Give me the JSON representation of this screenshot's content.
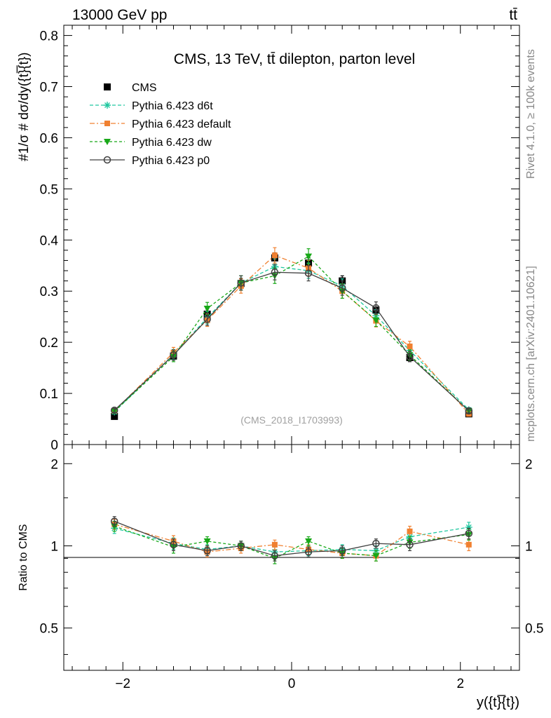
{
  "header": {
    "left": "13000 GeV pp",
    "right": "tt̄"
  },
  "side_labels": {
    "rivet": "Rivet 4.1.0, ≥ 100k events",
    "mcplots": "mcplots.cern.ch [arXiv:2401.10621]"
  },
  "colors": {
    "cms": "#000000",
    "d6t": "#20c8a0",
    "default": "#f08030",
    "dw": "#18a818",
    "p0": "#404040"
  },
  "chart_data": [
    {
      "type": "line",
      "title": "CMS, 13 TeV, tt̄ dilepton, parton level",
      "watermark": "(CMS_2018_I1703993)",
      "ylabel": "#1/σ # dσ/dy({t}̅{t})",
      "ylim": [
        0,
        0.82
      ],
      "xlim": [
        -2.7,
        2.7
      ],
      "yticks": [
        0,
        0.1,
        0.2,
        0.3,
        0.4,
        0.5,
        0.6,
        0.7,
        0.8
      ],
      "ytick_labels": [
        "0",
        "0.1",
        "0.2",
        "0.3",
        "0.4",
        "0.5",
        "0.6",
        "0.7",
        "0.8"
      ],
      "x": [
        -2.1,
        -1.4,
        -1.0,
        -0.6,
        -0.2,
        0.2,
        0.6,
        1.0,
        1.4,
        2.1
      ],
      "series": [
        {
          "name": "CMS",
          "key": "cms",
          "marker": "square",
          "dash": "",
          "connect": false,
          "values": [
            0.055,
            0.173,
            0.255,
            0.315,
            0.365,
            0.355,
            0.32,
            0.263,
            0.17,
            0.06
          ],
          "errors": [
            0.004,
            0.008,
            0.01,
            0.01,
            0.01,
            0.01,
            0.01,
            0.01,
            0.008,
            0.004
          ]
        },
        {
          "name": "Pythia 6.423 d6t",
          "key": "d6t",
          "marker": "star",
          "dash": "5,3",
          "connect": true,
          "values": [
            0.064,
            0.176,
            0.248,
            0.316,
            0.348,
            0.34,
            0.31,
            0.252,
            0.184,
            0.068
          ],
          "errors": [
            0.004,
            0.01,
            0.012,
            0.014,
            0.015,
            0.015,
            0.014,
            0.012,
            0.01,
            0.004
          ]
        },
        {
          "name": "Pythia 6.423 default",
          "key": "default",
          "marker": "fsquare",
          "dash": "7,3,2,3",
          "connect": true,
          "values": [
            0.066,
            0.18,
            0.243,
            0.31,
            0.37,
            0.345,
            0.3,
            0.242,
            0.192,
            0.06
          ],
          "errors": [
            0.004,
            0.01,
            0.012,
            0.014,
            0.015,
            0.015,
            0.014,
            0.012,
            0.01,
            0.004
          ]
        },
        {
          "name": "Pythia 6.423 dw",
          "key": "dw",
          "marker": "tri",
          "dash": "4,3",
          "connect": true,
          "values": [
            0.065,
            0.172,
            0.266,
            0.316,
            0.33,
            0.368,
            0.3,
            0.243,
            0.175,
            0.066
          ],
          "errors": [
            0.004,
            0.01,
            0.012,
            0.014,
            0.015,
            0.015,
            0.014,
            0.012,
            0.01,
            0.004
          ]
        },
        {
          "name": "Pythia 6.423 p0",
          "key": "p0",
          "marker": "circle",
          "dash": "",
          "connect": true,
          "values": [
            0.067,
            0.175,
            0.245,
            0.316,
            0.337,
            0.335,
            0.306,
            0.267,
            0.172,
            0.066
          ],
          "errors": [
            0.004,
            0.01,
            0.012,
            0.014,
            0.015,
            0.015,
            0.014,
            0.012,
            0.01,
            0.004
          ]
        }
      ]
    },
    {
      "type": "line",
      "ylabel": "Ratio to CMS",
      "xlabel": "y({t}̅{t})",
      "yscale": "log",
      "ylim": [
        0.35,
        2.35
      ],
      "xlim": [
        -2.7,
        2.7
      ],
      "yticks": [
        0.5,
        1,
        2
      ],
      "ytick_labels": [
        "0.5",
        "1",
        "2"
      ],
      "xticks": [
        -2,
        0,
        2
      ],
      "xtick_labels": [
        "−2",
        "0",
        "2"
      ],
      "reference": 1,
      "x": [
        -2.1,
        -1.4,
        -1.0,
        -0.6,
        -0.2,
        0.2,
        0.6,
        1.0,
        1.4,
        2.1
      ],
      "series": [
        {
          "name": "Pythia 6.423 d6t",
          "key": "d6t",
          "marker": "star",
          "dash": "5,3",
          "values": [
            1.16,
            1.02,
            0.97,
            1.0,
            0.95,
            0.96,
            0.97,
            0.96,
            1.08,
            1.17
          ],
          "errors": [
            0.05,
            0.05,
            0.04,
            0.04,
            0.04,
            0.04,
            0.04,
            0.04,
            0.05,
            0.05
          ]
        },
        {
          "name": "Pythia 6.423 default",
          "key": "default",
          "marker": "fsquare",
          "dash": "7,3,2,3",
          "values": [
            1.2,
            1.04,
            0.95,
            0.98,
            1.01,
            0.97,
            0.94,
            0.92,
            1.13,
            1.01
          ],
          "errors": [
            0.05,
            0.05,
            0.04,
            0.04,
            0.04,
            0.04,
            0.04,
            0.04,
            0.05,
            0.05
          ]
        },
        {
          "name": "Pythia 6.423 dw",
          "key": "dw",
          "marker": "tri",
          "dash": "4,3",
          "values": [
            1.18,
            0.99,
            1.04,
            1.0,
            0.9,
            1.04,
            0.94,
            0.92,
            1.03,
            1.1
          ],
          "errors": [
            0.05,
            0.05,
            0.04,
            0.04,
            0.04,
            0.04,
            0.04,
            0.04,
            0.05,
            0.05
          ]
        },
        {
          "name": "Pythia 6.423 p0",
          "key": "p0",
          "marker": "circle",
          "dash": "",
          "values": [
            1.23,
            1.01,
            0.96,
            1.0,
            0.92,
            0.95,
            0.96,
            1.02,
            1.01,
            1.11
          ],
          "errors": [
            0.05,
            0.05,
            0.04,
            0.04,
            0.04,
            0.04,
            0.04,
            0.04,
            0.05,
            0.05
          ]
        }
      ]
    }
  ]
}
